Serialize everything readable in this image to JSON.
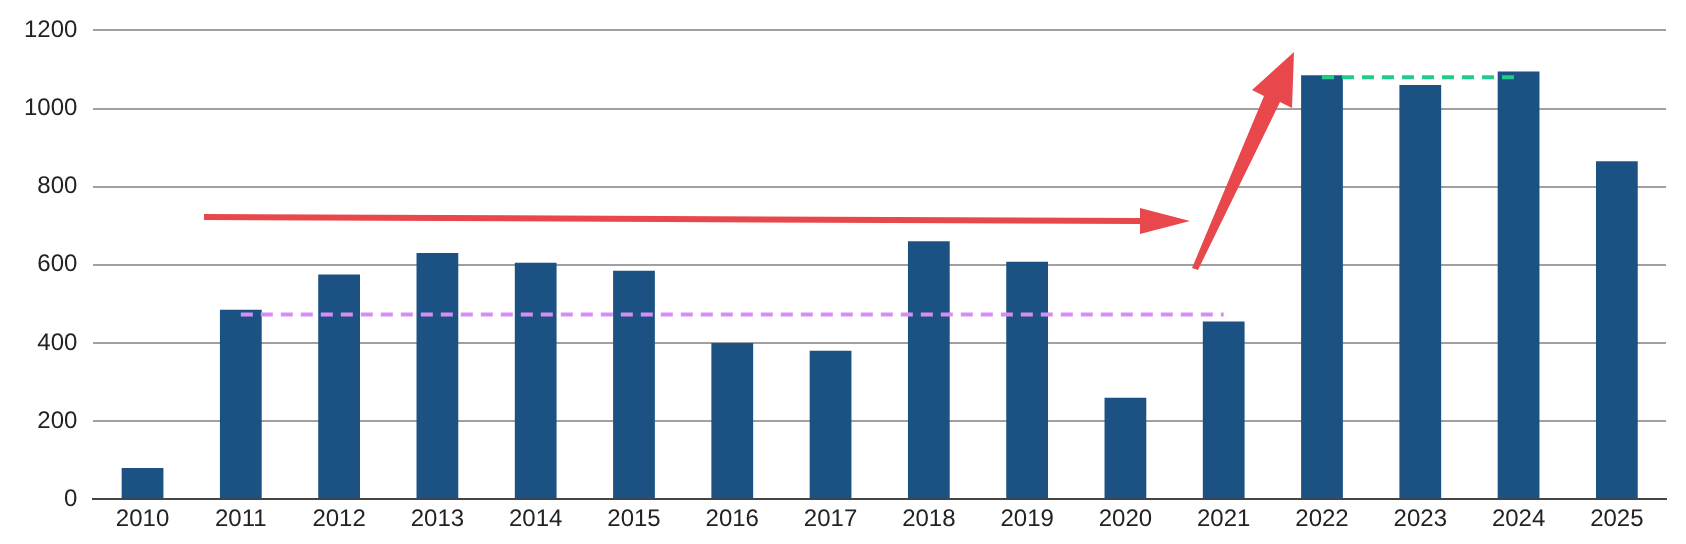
{
  "chart_data": {
    "type": "bar",
    "categories": [
      "2010",
      "2011",
      "2012",
      "2013",
      "2014",
      "2015",
      "2016",
      "2017",
      "2018",
      "2019",
      "2020",
      "2021",
      "2022",
      "2023",
      "2024",
      "2025"
    ],
    "series": [
      {
        "color": "#1b5283",
        "values": [
          80,
          485,
          575,
          630,
          605,
          585,
          400,
          380,
          660,
          608,
          260,
          455,
          1085,
          1060,
          1095,
          865
        ]
      },
      {
        "type": "line",
        "color": "#d98cf5",
        "line_style": "dashed",
        "marker": "none",
        "values": [
          null,
          473,
          473,
          473,
          473,
          473,
          473,
          473,
          473,
          473,
          473,
          473,
          null,
          null,
          null,
          null
        ]
      },
      {
        "type": "line",
        "color": "#1fcc8a",
        "line_style": "dashed",
        "marker": "none",
        "values": [
          null,
          null,
          null,
          null,
          null,
          null,
          null,
          null,
          null,
          null,
          null,
          null,
          1080,
          1080,
          1080,
          null
        ]
      }
    ],
    "ylim": [
      0,
      1200
    ],
    "yticks": [
      0,
      200,
      400,
      600,
      800,
      1000,
      1200
    ],
    "grid": "y",
    "legend": false
  }
}
